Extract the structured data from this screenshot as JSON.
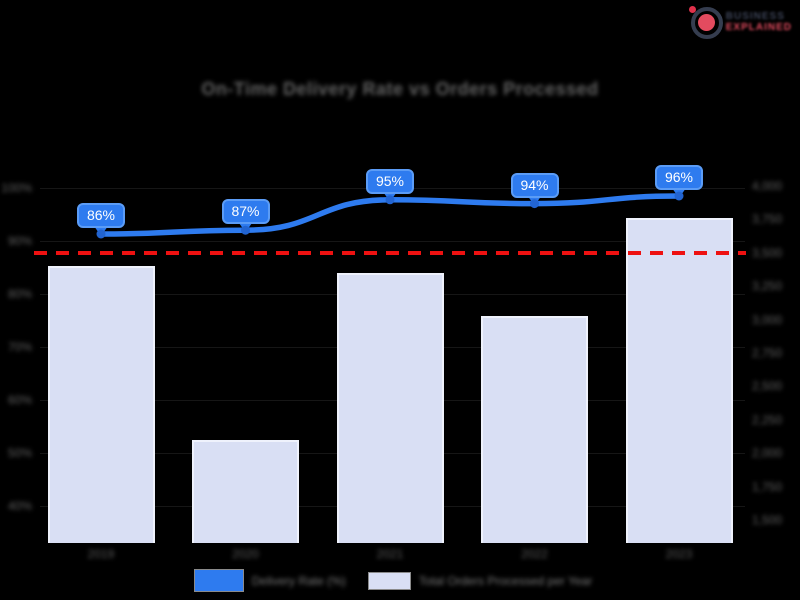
{
  "logo": {
    "line1": "BUSINESS",
    "line2": "EXPLAINED"
  },
  "header": {
    "title": "On-Time Delivery Rate vs Orders Processed"
  },
  "legend": {
    "line_label": "Delivery Rate (%)",
    "bar_label": "Total Orders Processed per Year"
  },
  "chart_data": {
    "type": "combo",
    "title": "On-Time Delivery Rate vs Orders Processed",
    "categories": [
      "2019",
      "2020",
      "2021",
      "2022",
      "2023"
    ],
    "series": [
      {
        "name": "Delivery Rate (%)",
        "type": "line",
        "axis": "left",
        "color": "#2e7bef",
        "values": [
          86,
          87,
          95,
          94,
          96
        ],
        "data_labels": [
          "86%",
          "87%",
          "95%",
          "94%",
          "96%"
        ]
      },
      {
        "name": "Total Orders Processed per Year",
        "type": "bar",
        "axis": "right",
        "color": "#d9dff4",
        "values": [
          3400,
          2100,
          3350,
          3030,
          3760
        ]
      }
    ],
    "annotations": [
      {
        "type": "horizontal-dashed-line",
        "color": "#ee1111"
      }
    ],
    "left_axis": {
      "tick_labels": [
        "100%",
        "90%",
        "80%",
        "70%",
        "60%",
        "50%",
        "40%"
      ]
    },
    "right_axis": {
      "tick_labels": [
        "4,000",
        "3,750",
        "3,500",
        "3,250",
        "3,000",
        "2,750",
        "2,500",
        "2,250",
        "2,000",
        "1,750",
        "1,500"
      ]
    },
    "legend_position": "bottom",
    "grid": "faint",
    "background": "#000000"
  }
}
